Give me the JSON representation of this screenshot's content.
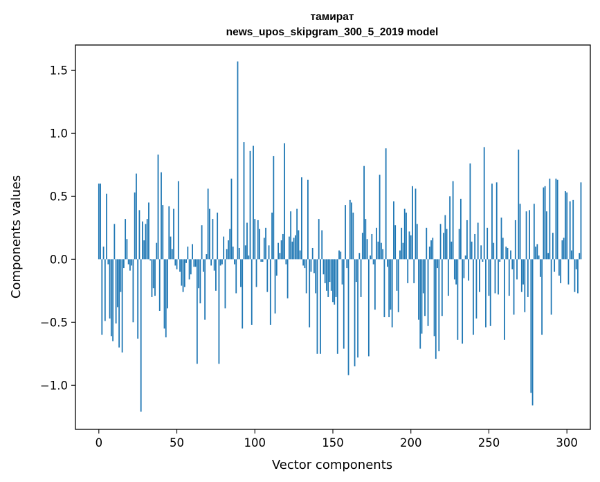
{
  "chart_data": {
    "type": "bar",
    "title": "тамират",
    "subtitle": "news_upos_skipgram_300_5_2019 model",
    "xlabel": "Vector components",
    "ylabel": "Components values",
    "xlim": [
      -15,
      315
    ],
    "ylim": [
      -1.35,
      1.7
    ],
    "xticks": [
      0,
      50,
      100,
      150,
      200,
      250,
      300
    ],
    "yticks": [
      -1.0,
      -0.5,
      0.0,
      0.5,
      1.0,
      1.5
    ],
    "ytick_labels": [
      "−1.0",
      "−0.5",
      "0.0",
      "0.5",
      "1.0",
      "1.5"
    ],
    "grid": false,
    "bar_color": "#1f77b4",
    "values": [
      0.6,
      0.6,
      -0.6,
      0.1,
      -0.49,
      0.52,
      -0.04,
      -0.47,
      -0.61,
      -0.65,
      0.28,
      -0.51,
      -0.38,
      -0.7,
      -0.26,
      -0.74,
      -0.07,
      0.32,
      0.16,
      -0.04,
      -0.09,
      -0.05,
      -0.5,
      0.53,
      0.68,
      -0.63,
      0.39,
      -1.21,
      0.3,
      0.15,
      0.28,
      0.32,
      0.45,
      -0.01,
      -0.3,
      -0.23,
      -0.29,
      0.13,
      0.83,
      -0.41,
      0.69,
      0.43,
      -0.55,
      -0.62,
      -0.39,
      0.42,
      0.18,
      0.08,
      0.4,
      -0.05,
      -0.08,
      0.62,
      -0.1,
      -0.21,
      -0.26,
      -0.22,
      -0.03,
      0.1,
      -0.16,
      -0.12,
      0.12,
      -0.06,
      -0.06,
      -0.83,
      -0.23,
      -0.35,
      0.27,
      -0.1,
      -0.48,
      0.04,
      0.56,
      0.4,
      -0.05,
      0.32,
      -0.09,
      -0.25,
      0.37,
      -0.83,
      -0.05,
      -0.04,
      0.18,
      -0.39,
      0.08,
      0.15,
      0.24,
      0.64,
      0.1,
      -0.04,
      -0.27,
      1.57,
      0.09,
      -0.22,
      -0.55,
      0.93,
      0.11,
      0.29,
      0.03,
      0.86,
      -0.52,
      0.9,
      0.32,
      -0.22,
      0.31,
      0.24,
      -0.02,
      -0.02,
      0.17,
      0.25,
      -0.26,
      0.11,
      -0.52,
      0.37,
      0.82,
      -0.43,
      -0.13,
      0.13,
      0.05,
      0.15,
      0.2,
      0.92,
      -0.04,
      -0.31,
      0.18,
      0.38,
      0.14,
      0.17,
      0.19,
      0.4,
      0.23,
      0.07,
      0.65,
      -0.05,
      -0.07,
      -0.27,
      0.63,
      -0.54,
      -0.1,
      0.09,
      -0.11,
      -0.27,
      -0.75,
      0.32,
      -0.75,
      0.23,
      -0.12,
      -0.19,
      -0.25,
      -0.3,
      -0.18,
      -0.25,
      -0.34,
      -0.36,
      -0.3,
      -0.75,
      0.07,
      0.06,
      -0.2,
      -0.71,
      0.43,
      -0.07,
      -0.92,
      0.47,
      0.45,
      0.37,
      -0.85,
      -0.18,
      -0.78,
      0.05,
      -0.3,
      0.21,
      0.74,
      0.32,
      0.16,
      -0.77,
      0.03,
      0.2,
      -0.04,
      -0.4,
      0.25,
      0.14,
      0.67,
      0.13,
      0.08,
      -0.46,
      0.88,
      -0.06,
      -0.46,
      -0.4,
      -0.54,
      0.46,
      0.27,
      -0.25,
      -0.42,
      0.07,
      0.25,
      0.13,
      0.4,
      0.37,
      -0.19,
      0.22,
      0.19,
      0.58,
      -0.19,
      0.56,
      0.28,
      -0.48,
      -0.71,
      -0.59,
      -0.27,
      -0.45,
      0.25,
      -0.53,
      0.1,
      0.15,
      0.17,
      -0.61,
      -0.79,
      -0.07,
      -0.73,
      0.28,
      -0.45,
      0.21,
      0.35,
      0.24,
      -0.29,
      0.5,
      0.14,
      0.62,
      -0.16,
      -0.2,
      -0.64,
      0.24,
      0.48,
      -0.67,
      -0.15,
      0.03,
      0.31,
      -0.17,
      0.76,
      0.14,
      -0.6,
      0.2,
      -0.47,
      0.29,
      -0.26,
      0.11,
      -0.02,
      0.89,
      -0.54,
      0.25,
      -0.29,
      -0.53,
      0.6,
      0.13,
      -0.27,
      0.61,
      -0.28,
      -0.02,
      0.33,
      0.17,
      -0.64,
      0.1,
      0.09,
      -0.29,
      0.07,
      -0.08,
      -0.44,
      0.31,
      -0.16,
      0.87,
      0.44,
      -0.26,
      -0.2,
      -0.42,
      0.38,
      -0.3,
      0.39,
      -1.06,
      -1.16,
      0.44,
      0.1,
      0.12,
      0.03,
      -0.14,
      -0.6,
      0.57,
      0.58,
      0.38,
      0.05,
      0.64,
      -0.44,
      0.21,
      -0.1,
      0.64,
      0.63,
      -0.13,
      -0.19,
      0.15,
      0.17,
      0.54,
      0.53,
      -0.2,
      0.46,
      0.07,
      0.47,
      -0.26,
      -0.08,
      -0.27,
      0.05,
      0.61
    ]
  }
}
